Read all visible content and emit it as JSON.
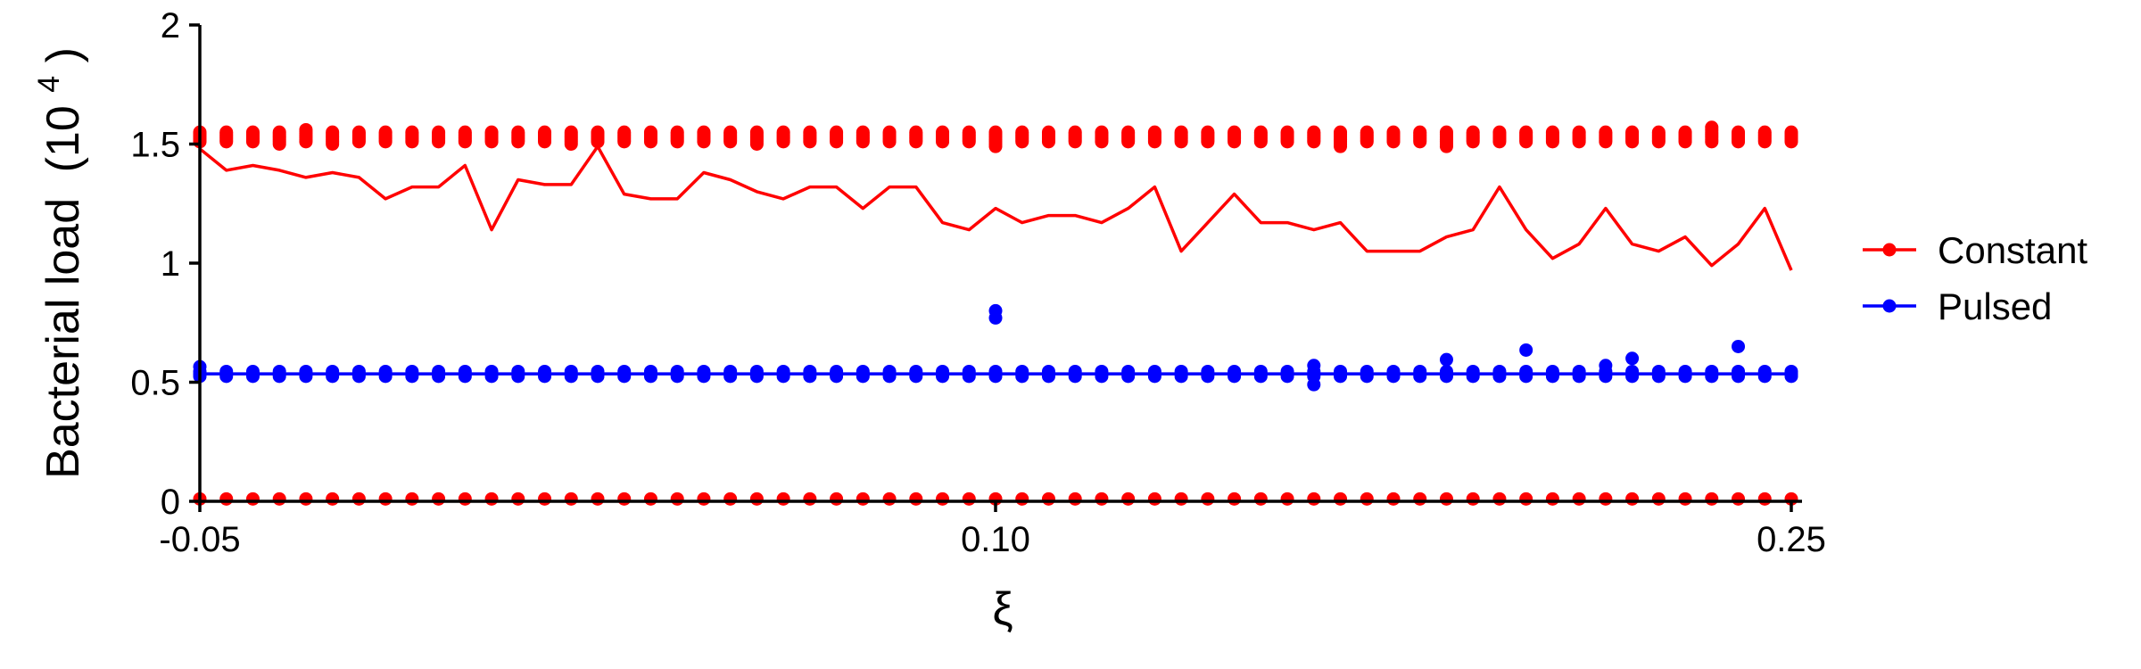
{
  "chart_data": {
    "type": "scatter",
    "xlabel": "ξ",
    "ylabel_main": "Bacterial load",
    "ylabel_unit_base": "(10",
    "ylabel_unit_exp": "4",
    "ylabel_unit_close": ")",
    "ylim": [
      0,
      2
    ],
    "y_ticks": [
      0,
      0.5,
      1,
      1.5,
      2
    ],
    "y_tick_labels": [
      "0",
      "0.5",
      "1",
      "1.5",
      "2"
    ],
    "x_ticks": [
      0,
      30,
      60
    ],
    "x_tick_labels": [
      "-0.05",
      "0.10",
      "0.25"
    ],
    "xlim": [
      0,
      60
    ],
    "legend_position": "right",
    "colors": {
      "constant": "#ff0000",
      "pulsed": "#0000ff",
      "axis": "#000000"
    },
    "series": [
      {
        "name": "Constant",
        "color": "#ff0000",
        "x": [
          0,
          1,
          2,
          3,
          4,
          5,
          6,
          7,
          8,
          9,
          10,
          11,
          12,
          13,
          14,
          15,
          16,
          17,
          18,
          19,
          20,
          21,
          22,
          23,
          24,
          25,
          26,
          27,
          28,
          29,
          30,
          31,
          32,
          33,
          34,
          35,
          36,
          37,
          38,
          39,
          40,
          41,
          42,
          43,
          44,
          45,
          46,
          47,
          48,
          49,
          50,
          51,
          52,
          53,
          54,
          55,
          56,
          57,
          58,
          59,
          60
        ],
        "mean_line": [
          1.48,
          1.39,
          1.41,
          1.39,
          1.36,
          1.38,
          1.36,
          1.27,
          1.32,
          1.32,
          1.41,
          1.14,
          1.35,
          1.33,
          1.33,
          1.49,
          1.29,
          1.27,
          1.27,
          1.38,
          1.35,
          1.3,
          1.27,
          1.32,
          1.32,
          1.23,
          1.32,
          1.32,
          1.17,
          1.14,
          1.23,
          1.17,
          1.2,
          1.2,
          1.17,
          1.23,
          1.32,
          1.05,
          1.17,
          1.29,
          1.17,
          1.17,
          1.14,
          1.17,
          1.05,
          1.05,
          1.05,
          1.11,
          1.14,
          1.32,
          1.14,
          1.02,
          1.08,
          1.23,
          1.08,
          1.05,
          1.11,
          0.99,
          1.08,
          1.23,
          0.97
        ],
        "upper_cluster_low": [
          1.51,
          1.51,
          1.51,
          1.5,
          1.51,
          1.5,
          1.51,
          1.51,
          1.51,
          1.51,
          1.51,
          1.51,
          1.51,
          1.51,
          1.5,
          1.51,
          1.51,
          1.51,
          1.51,
          1.51,
          1.51,
          1.5,
          1.51,
          1.51,
          1.51,
          1.51,
          1.51,
          1.51,
          1.51,
          1.51,
          1.49,
          1.51,
          1.51,
          1.51,
          1.51,
          1.51,
          1.51,
          1.51,
          1.51,
          1.51,
          1.51,
          1.51,
          1.51,
          1.49,
          1.51,
          1.51,
          1.51,
          1.49,
          1.51,
          1.51,
          1.51,
          1.51,
          1.51,
          1.51,
          1.51,
          1.51,
          1.51,
          1.51,
          1.51,
          1.51,
          1.51
        ],
        "upper_cluster_high": [
          1.55,
          1.55,
          1.55,
          1.55,
          1.56,
          1.55,
          1.55,
          1.55,
          1.55,
          1.55,
          1.55,
          1.55,
          1.55,
          1.55,
          1.55,
          1.55,
          1.55,
          1.55,
          1.55,
          1.55,
          1.55,
          1.55,
          1.55,
          1.55,
          1.55,
          1.55,
          1.55,
          1.55,
          1.55,
          1.55,
          1.55,
          1.55,
          1.55,
          1.55,
          1.55,
          1.55,
          1.55,
          1.55,
          1.55,
          1.55,
          1.55,
          1.55,
          1.55,
          1.55,
          1.55,
          1.55,
          1.55,
          1.55,
          1.55,
          1.55,
          1.55,
          1.55,
          1.55,
          1.55,
          1.55,
          1.55,
          1.55,
          1.57,
          1.55,
          1.55,
          1.55
        ],
        "lower_cluster": 0.01
      },
      {
        "name": "Pulsed",
        "color": "#0000ff",
        "x": [
          0,
          1,
          2,
          3,
          4,
          5,
          6,
          7,
          8,
          9,
          10,
          11,
          12,
          13,
          14,
          15,
          16,
          17,
          18,
          19,
          20,
          21,
          22,
          23,
          24,
          25,
          26,
          27,
          28,
          29,
          30,
          31,
          32,
          33,
          34,
          35,
          36,
          37,
          38,
          39,
          40,
          41,
          42,
          43,
          44,
          45,
          46,
          47,
          48,
          49,
          50,
          51,
          52,
          53,
          54,
          55,
          56,
          57,
          58,
          59,
          60
        ],
        "line": 0.535,
        "cluster_low": 0.525,
        "cluster_high": 0.545,
        "outliers": [
          {
            "x": 0,
            "y": 0.565
          },
          {
            "x": 30,
            "y": 0.8
          },
          {
            "x": 30,
            "y": 0.77
          },
          {
            "x": 42,
            "y": 0.57
          },
          {
            "x": 42,
            "y": 0.49
          },
          {
            "x": 47,
            "y": 0.595
          },
          {
            "x": 50,
            "y": 0.635
          },
          {
            "x": 53,
            "y": 0.57
          },
          {
            "x": 54,
            "y": 0.6
          },
          {
            "x": 58,
            "y": 0.65
          }
        ]
      }
    ]
  }
}
